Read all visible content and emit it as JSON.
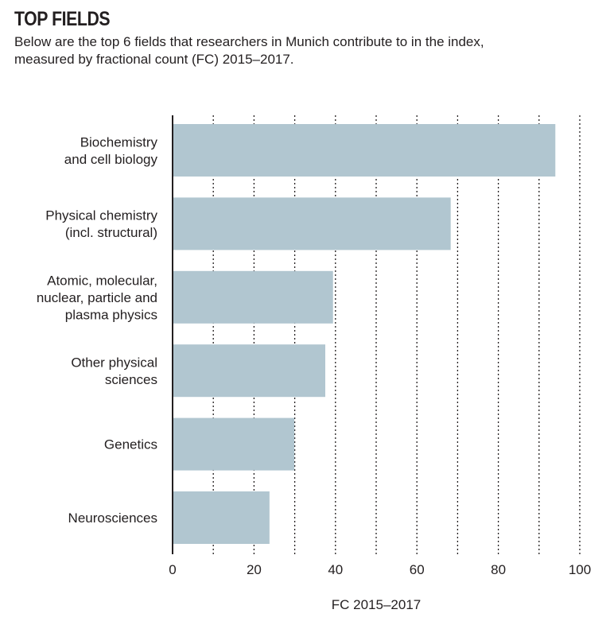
{
  "chart_data": {
    "type": "bar",
    "orientation": "horizontal",
    "title": "TOP FIELDS",
    "subtitle_lines": [
      "Below are the top 6 fields that researchers in Munich contribute to in the index,",
      "measured by fractional count (FC) 2015–2017."
    ],
    "categories": [
      [
        "Biochemistry",
        "and cell biology"
      ],
      [
        "Physical chemistry",
        "(incl. structural)"
      ],
      [
        "Atomic, molecular,",
        "nuclear, particle and",
        "plasma physics"
      ],
      [
        "Other physical",
        "sciences"
      ],
      [
        "Genetics"
      ],
      [
        "Neurosciences"
      ]
    ],
    "values": [
      94.0,
      68.3,
      39.4,
      37.5,
      29.9,
      23.8
    ],
    "xlabel": "FC 2015–2017",
    "xlim": [
      0,
      100
    ],
    "xticks": [
      0,
      20,
      40,
      60,
      80,
      100
    ],
    "grid": "vertical dotted every 10",
    "colors": {
      "bar": "#b1c6d0",
      "grid": "#231f20"
    }
  }
}
